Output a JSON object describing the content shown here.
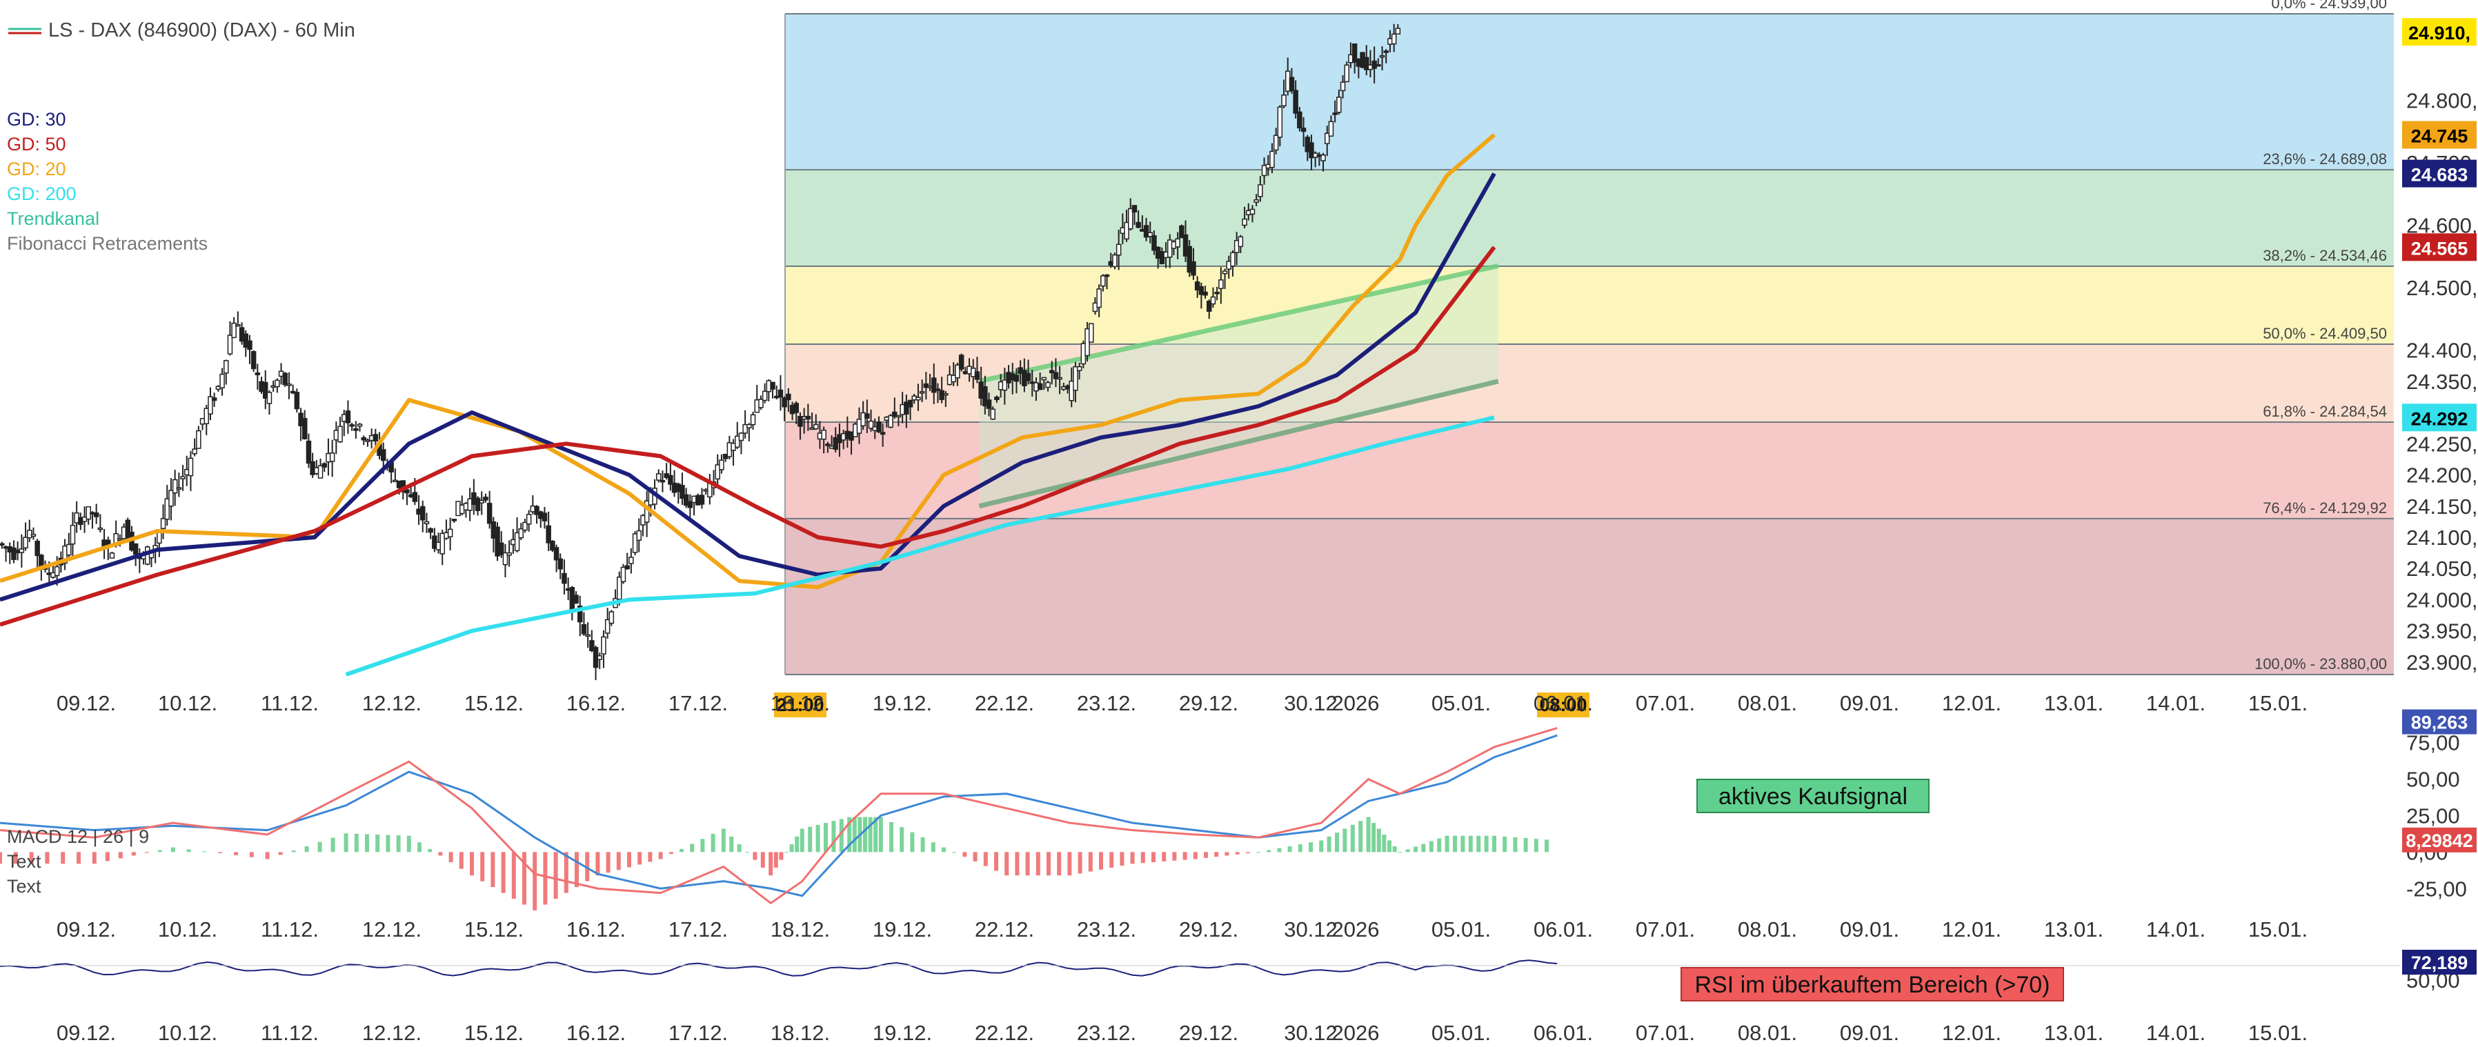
{
  "header": {
    "title": "LS - DAX (846900) (DAX) - 60 Min"
  },
  "legend": [
    {
      "label": "GD: 30",
      "color": "#1b1f7a"
    },
    {
      "label": "GD: 50",
      "color": "#c41e1e"
    },
    {
      "label": "GD: 20",
      "color": "#f2a516"
    },
    {
      "label": "GD: 200",
      "color": "#33e0ec"
    },
    {
      "label": "Trendkanal",
      "color": "#3ac0a0"
    },
    {
      "label": "Fibonacci Retracements",
      "color": "#777777"
    }
  ],
  "price_panel": {
    "y_ticks": [
      "23.900,",
      "23.950,",
      "24.000,",
      "24.050,",
      "24.100,",
      "24.150,",
      "24.200,",
      "24.250,",
      "24.350,",
      "24.400,",
      "24.500,",
      "24.600,",
      "24.700,",
      "24.800,"
    ],
    "y_tick_values": [
      23900,
      23950,
      24000,
      24050,
      24100,
      24150,
      24200,
      24250,
      24350,
      24400,
      24500,
      24600,
      24700,
      24800
    ],
    "y_range": [
      23880,
      24939
    ],
    "last_price_badges": [
      {
        "label": "24.910,",
        "value": 24910,
        "bg": "#ffe600",
        "fg": "#000000"
      },
      {
        "label": "24.745",
        "value": 24745,
        "bg": "#f2a516",
        "fg": "#000000"
      },
      {
        "label": "24.683",
        "value": 24683,
        "bg": "#1b1f7a",
        "fg": "#ffffff"
      },
      {
        "label": "24.565",
        "value": 24565,
        "bg": "#c41e1e",
        "fg": "#ffffff"
      },
      {
        "label": "24.292",
        "value": 24292,
        "bg": "#33e0ec",
        "fg": "#000000"
      }
    ],
    "fib_levels": [
      {
        "label": "0,0% - 24.939,00",
        "value": 24939
      },
      {
        "label": "23,6% - 24.689,08",
        "value": 24689.08
      },
      {
        "label": "38,2% - 24.534,46",
        "value": 24534.46
      },
      {
        "label": "50,0% - 24.409,50",
        "value": 24409.5
      },
      {
        "label": "61,8% - 24.284,54",
        "value": 24284.54
      },
      {
        "label": "76,4% - 24.129,92",
        "value": 24129.92
      },
      {
        "label": "100,0% - 23.880,00",
        "value": 23880
      }
    ],
    "fib_zone_colors": [
      "#a8daf0",
      "#b7e0c2",
      "#fbf1a6",
      "#f9d5c2",
      "#f3b6b6",
      "#dcaaae"
    ],
    "time_badges": [
      {
        "label": "21:00",
        "at": "18.12."
      },
      {
        "label": "08:00",
        "at": "06.01."
      }
    ]
  },
  "x_axis_labels": [
    "09.12.",
    "10.12.",
    "11.12.",
    "12.12.",
    "15.12.",
    "16.12.",
    "17.12.",
    "18.12.",
    "19.12.",
    "22.12.",
    "23.12.",
    "29.12.",
    "30.12",
    "2026",
    "05.01.",
    "06.01.",
    "07.01.",
    "08.01.",
    "09.01.",
    "12.01.",
    "13.01.",
    "14.01.",
    "15.01."
  ],
  "chart_data": [
    {
      "type": "candlestick",
      "title": "LS - DAX (846900) (DAX) - 60 Min",
      "x_labels": [
        "09.12.",
        "10.12.",
        "11.12.",
        "12.12.",
        "15.12.",
        "16.12.",
        "17.12.",
        "18.12.",
        "19.12.",
        "22.12.",
        "23.12.",
        "29.12.",
        "30.12",
        "2026",
        "05.01.",
        "06.01.",
        "07.01.",
        "08.01.",
        "09.01.",
        "12.01.",
        "13.01.",
        "14.01.",
        "15.01."
      ],
      "close_path": [
        [
          0,
          24090
        ],
        [
          10,
          24075
        ],
        [
          20,
          24110
        ],
        [
          30,
          24040
        ],
        [
          40,
          24060
        ],
        [
          50,
          24130
        ],
        [
          60,
          24140
        ],
        [
          70,
          24075
        ],
        [
          80,
          24120
        ],
        [
          90,
          24060
        ],
        [
          100,
          24090
        ],
        [
          110,
          24170
        ],
        [
          120,
          24210
        ],
        [
          130,
          24290
        ],
        [
          140,
          24340
        ],
        [
          150,
          24450
        ],
        [
          160,
          24390
        ],
        [
          170,
          24320
        ],
        [
          180,
          24360
        ],
        [
          190,
          24310
        ],
        [
          200,
          24200
        ],
        [
          210,
          24230
        ],
        [
          220,
          24300
        ],
        [
          230,
          24270
        ],
        [
          240,
          24250
        ],
        [
          250,
          24200
        ],
        [
          260,
          24170
        ],
        [
          270,
          24130
        ],
        [
          280,
          24080
        ],
        [
          290,
          24140
        ],
        [
          300,
          24160
        ],
        [
          310,
          24150
        ],
        [
          320,
          24060
        ],
        [
          330,
          24100
        ],
        [
          340,
          24160
        ],
        [
          350,
          24100
        ],
        [
          360,
          24020
        ],
        [
          370,
          23970
        ],
        [
          380,
          23900
        ],
        [
          390,
          23990
        ],
        [
          400,
          24060
        ],
        [
          410,
          24130
        ],
        [
          420,
          24200
        ],
        [
          430,
          24180
        ],
        [
          440,
          24150
        ],
        [
          450,
          24170
        ],
        [
          460,
          24230
        ],
        [
          470,
          24250
        ],
        [
          480,
          24300
        ],
        [
          490,
          24340
        ],
        [
          500,
          24320
        ],
        [
          510,
          24290
        ],
        [
          520,
          24270
        ],
        [
          530,
          24250
        ],
        [
          540,
          24260
        ],
        [
          550,
          24290
        ],
        [
          560,
          24270
        ],
        [
          570,
          24300
        ],
        [
          580,
          24310
        ],
        [
          590,
          24350
        ],
        [
          600,
          24330
        ],
        [
          610,
          24380
        ],
        [
          620,
          24360
        ],
        [
          630,
          24300
        ],
        [
          640,
          24360
        ],
        [
          650,
          24360
        ],
        [
          660,
          24340
        ],
        [
          670,
          24360
        ],
        [
          680,
          24330
        ],
        [
          690,
          24400
        ],
        [
          700,
          24500
        ],
        [
          710,
          24560
        ],
        [
          720,
          24620
        ],
        [
          730,
          24590
        ],
        [
          740,
          24540
        ],
        [
          750,
          24590
        ],
        [
          760,
          24520
        ],
        [
          770,
          24470
        ],
        [
          780,
          24530
        ],
        [
          790,
          24590
        ],
        [
          800,
          24650
        ],
        [
          810,
          24720
        ],
        [
          820,
          24840
        ],
        [
          830,
          24740
        ],
        [
          840,
          24700
        ],
        [
          850,
          24790
        ],
        [
          860,
          24880
        ],
        [
          870,
          24850
        ],
        [
          880,
          24870
        ],
        [
          890,
          24910
        ]
      ],
      "moving_averages": [
        {
          "name": "GD: 20",
          "color": "#f2a516",
          "points": [
            [
              0,
              24030
            ],
            [
              100,
              24110
            ],
            [
              200,
              24100
            ],
            [
              260,
              24320
            ],
            [
              330,
              24270
            ],
            [
              400,
              24170
            ],
            [
              470,
              24030
            ],
            [
              520,
              24020
            ],
            [
              560,
              24060
            ],
            [
              600,
              24200
            ],
            [
              650,
              24260
            ],
            [
              700,
              24280
            ],
            [
              750,
              24320
            ],
            [
              800,
              24330
            ],
            [
              830,
              24380
            ],
            [
              860,
              24470
            ],
            [
              890,
              24545
            ],
            [
              900,
              24600
            ],
            [
              920,
              24680
            ],
            [
              950,
              24745
            ]
          ]
        },
        {
          "name": "GD: 30",
          "color": "#1b1f7a",
          "points": [
            [
              0,
              24000
            ],
            [
              100,
              24080
            ],
            [
              200,
              24100
            ],
            [
              260,
              24250
            ],
            [
              300,
              24300
            ],
            [
              400,
              24200
            ],
            [
              470,
              24070
            ],
            [
              520,
              24040
            ],
            [
              560,
              24050
            ],
            [
              600,
              24150
            ],
            [
              650,
              24220
            ],
            [
              700,
              24260
            ],
            [
              750,
              24280
            ],
            [
              800,
              24310
            ],
            [
              850,
              24360
            ],
            [
              900,
              24460
            ],
            [
              950,
              24683
            ]
          ]
        },
        {
          "name": "GD: 50",
          "color": "#c41e1e",
          "points": [
            [
              0,
              23960
            ],
            [
              100,
              24040
            ],
            [
              200,
              24110
            ],
            [
              300,
              24230
            ],
            [
              360,
              24250
            ],
            [
              420,
              24230
            ],
            [
              480,
              24150
            ],
            [
              520,
              24100
            ],
            [
              560,
              24085
            ],
            [
              600,
              24110
            ],
            [
              650,
              24150
            ],
            [
              700,
              24200
            ],
            [
              750,
              24250
            ],
            [
              800,
              24280
            ],
            [
              850,
              24320
            ],
            [
              900,
              24400
            ],
            [
              950,
              24565
            ]
          ]
        },
        {
          "name": "GD: 200",
          "color": "#33e0ec",
          "points": [
            [
              220,
              23880
            ],
            [
              300,
              23950
            ],
            [
              400,
              24000
            ],
            [
              480,
              24010
            ],
            [
              560,
              24060
            ],
            [
              640,
              24120
            ],
            [
              700,
              24150
            ],
            [
              760,
              24180
            ],
            [
              820,
              24210
            ],
            [
              880,
              24250
            ],
            [
              950,
              24292
            ]
          ]
        }
      ],
      "trend_channel": {
        "upper": [
          [
            605,
            24350
          ],
          [
            935,
            24535
          ]
        ],
        "lower": [
          [
            605,
            24150
          ],
          [
            935,
            24350
          ]
        ],
        "color": "#3ac0a0"
      }
    },
    {
      "type": "macd",
      "legend": "MACD 12 | 26 | 9",
      "extra_labels": [
        "Text",
        "Text"
      ],
      "y_ticks": [
        "75,00",
        "50,00",
        "25,00",
        "0,00",
        "-25,00"
      ],
      "y_tick_values": [
        75,
        50,
        25,
        0,
        -25
      ],
      "y_range": [
        -40,
        90
      ],
      "value_badges": [
        {
          "label": "89,263",
          "value": 89.263,
          "bg": "#3d54b4",
          "fg": "#ffffff"
        },
        {
          "label": "8,29842",
          "value": 8.29842,
          "bg": "#e04848",
          "fg": "#ffffff"
        }
      ],
      "macd_line": [
        [
          0,
          15
        ],
        [
          60,
          10
        ],
        [
          110,
          20
        ],
        [
          170,
          12
        ],
        [
          220,
          40
        ],
        [
          260,
          62
        ],
        [
          300,
          30
        ],
        [
          340,
          -15
        ],
        [
          380,
          -25
        ],
        [
          420,
          -28
        ],
        [
          460,
          -10
        ],
        [
          490,
          -35
        ],
        [
          510,
          -20
        ],
        [
          540,
          20
        ],
        [
          560,
          40
        ],
        [
          600,
          40
        ],
        [
          640,
          30
        ],
        [
          680,
          20
        ],
        [
          720,
          15
        ],
        [
          760,
          12
        ],
        [
          800,
          10
        ],
        [
          840,
          20
        ],
        [
          870,
          50
        ],
        [
          890,
          40
        ],
        [
          920,
          55
        ],
        [
          950,
          72
        ],
        [
          990,
          85
        ]
      ],
      "signal_line": [
        [
          0,
          20
        ],
        [
          60,
          15
        ],
        [
          110,
          18
        ],
        [
          170,
          15
        ],
        [
          220,
          32
        ],
        [
          260,
          55
        ],
        [
          300,
          40
        ],
        [
          340,
          10
        ],
        [
          380,
          -15
        ],
        [
          420,
          -25
        ],
        [
          460,
          -20
        ],
        [
          490,
          -25
        ],
        [
          510,
          -30
        ],
        [
          540,
          5
        ],
        [
          560,
          25
        ],
        [
          600,
          38
        ],
        [
          640,
          40
        ],
        [
          680,
          30
        ],
        [
          720,
          20
        ],
        [
          760,
          15
        ],
        [
          800,
          10
        ],
        [
          840,
          15
        ],
        [
          870,
          35
        ],
        [
          890,
          40
        ],
        [
          920,
          48
        ],
        [
          950,
          65
        ],
        [
          990,
          80
        ]
      ],
      "annotation": "aktives Kaufsignal"
    },
    {
      "type": "rsi",
      "y_ticks": [
        "50,00"
      ],
      "value_badges": [
        {
          "label": "72,189",
          "value": 72.189,
          "bg": "#1b1f7a",
          "fg": "#ffffff"
        }
      ],
      "annotation": "RSI im überkauftem Bereich (>70)"
    }
  ]
}
